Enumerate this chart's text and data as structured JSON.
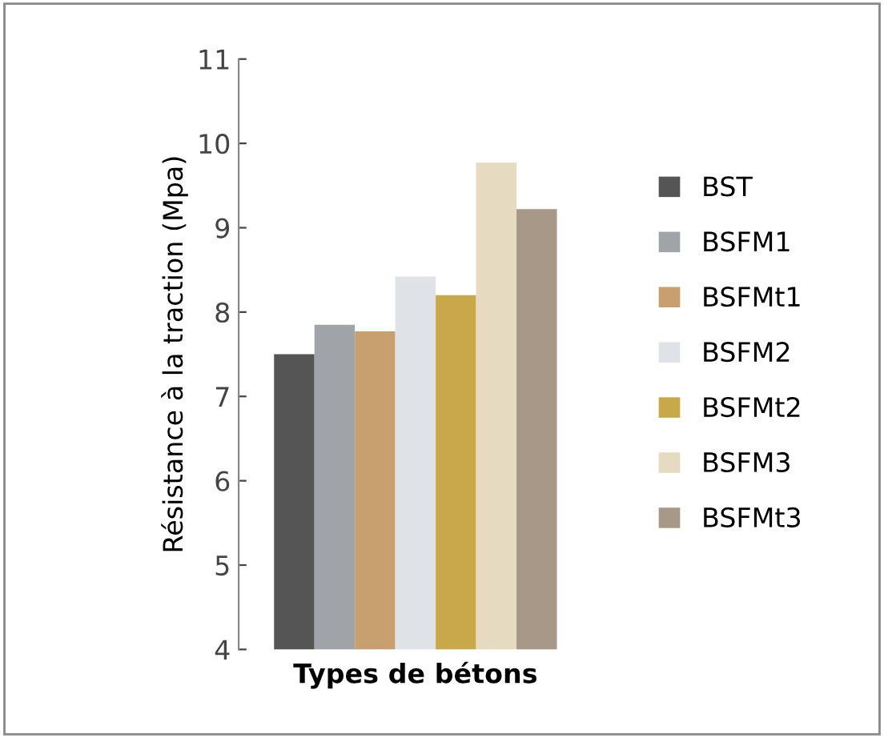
{
  "chart_data": {
    "type": "bar",
    "xlabel": "Types de bétons",
    "ylabel": "Résistance à la traction (Mpa)",
    "categories": [
      null
    ],
    "series": [
      {
        "name": "BST",
        "color": "#555555",
        "values": [
          7.5
        ]
      },
      {
        "name": "BSFM1",
        "color": "#a0a4a8",
        "values": [
          7.85
        ]
      },
      {
        "name": "BSFMt1",
        "color": "#c8a070",
        "values": [
          7.77
        ]
      },
      {
        "name": "BSFM2",
        "color": "#dfe3e8",
        "values": [
          8.42
        ]
      },
      {
        "name": "BSFMt2",
        "color": "#c8a848",
        "values": [
          8.2
        ]
      },
      {
        "name": "BSFM3",
        "color": "#e6dac0",
        "values": [
          9.77
        ]
      },
      {
        "name": "BSFMt3",
        "color": "#a89888",
        "values": [
          9.22
        ]
      }
    ],
    "ylim": [
      4,
      11
    ],
    "yticks": [
      4,
      5,
      6,
      7,
      8,
      9,
      10,
      11
    ],
    "grid": false,
    "legend": "right"
  }
}
